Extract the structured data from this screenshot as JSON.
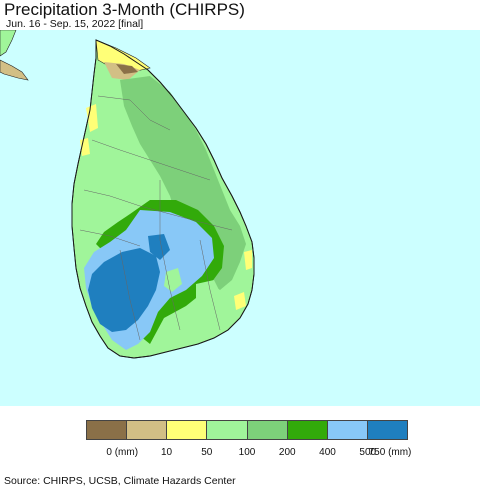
{
  "header": {
    "title": "Precipitation 3-Month (CHIRPS)",
    "subtitle": "Jun. 16 - Sep. 15, 2022 [final]"
  },
  "colors": {
    "ocean": "#ccffff",
    "land_yellow": "#ffff77",
    "land_light_green": "#a0f59a",
    "land_green": "#7dd07a",
    "land_dark_green": "#32aa0a",
    "land_light_blue": "#88c8f7",
    "land_blue": "#1f7fbf",
    "land_brown": "#8a7048",
    "land_tan": "#d2bf85"
  },
  "legend": {
    "colors": [
      "#8a7048",
      "#d2bf85",
      "#ffff77",
      "#a0f59a",
      "#7dd07a",
      "#32aa0a",
      "#88c8f7",
      "#1f7fbf"
    ],
    "labels": [
      "0 (mm)",
      "10",
      "50",
      "100",
      "200",
      "400",
      "500",
      "750 (mm)"
    ]
  },
  "footer": {
    "source": "Source: CHIRPS, UCSB, Climate Hazards Center"
  }
}
